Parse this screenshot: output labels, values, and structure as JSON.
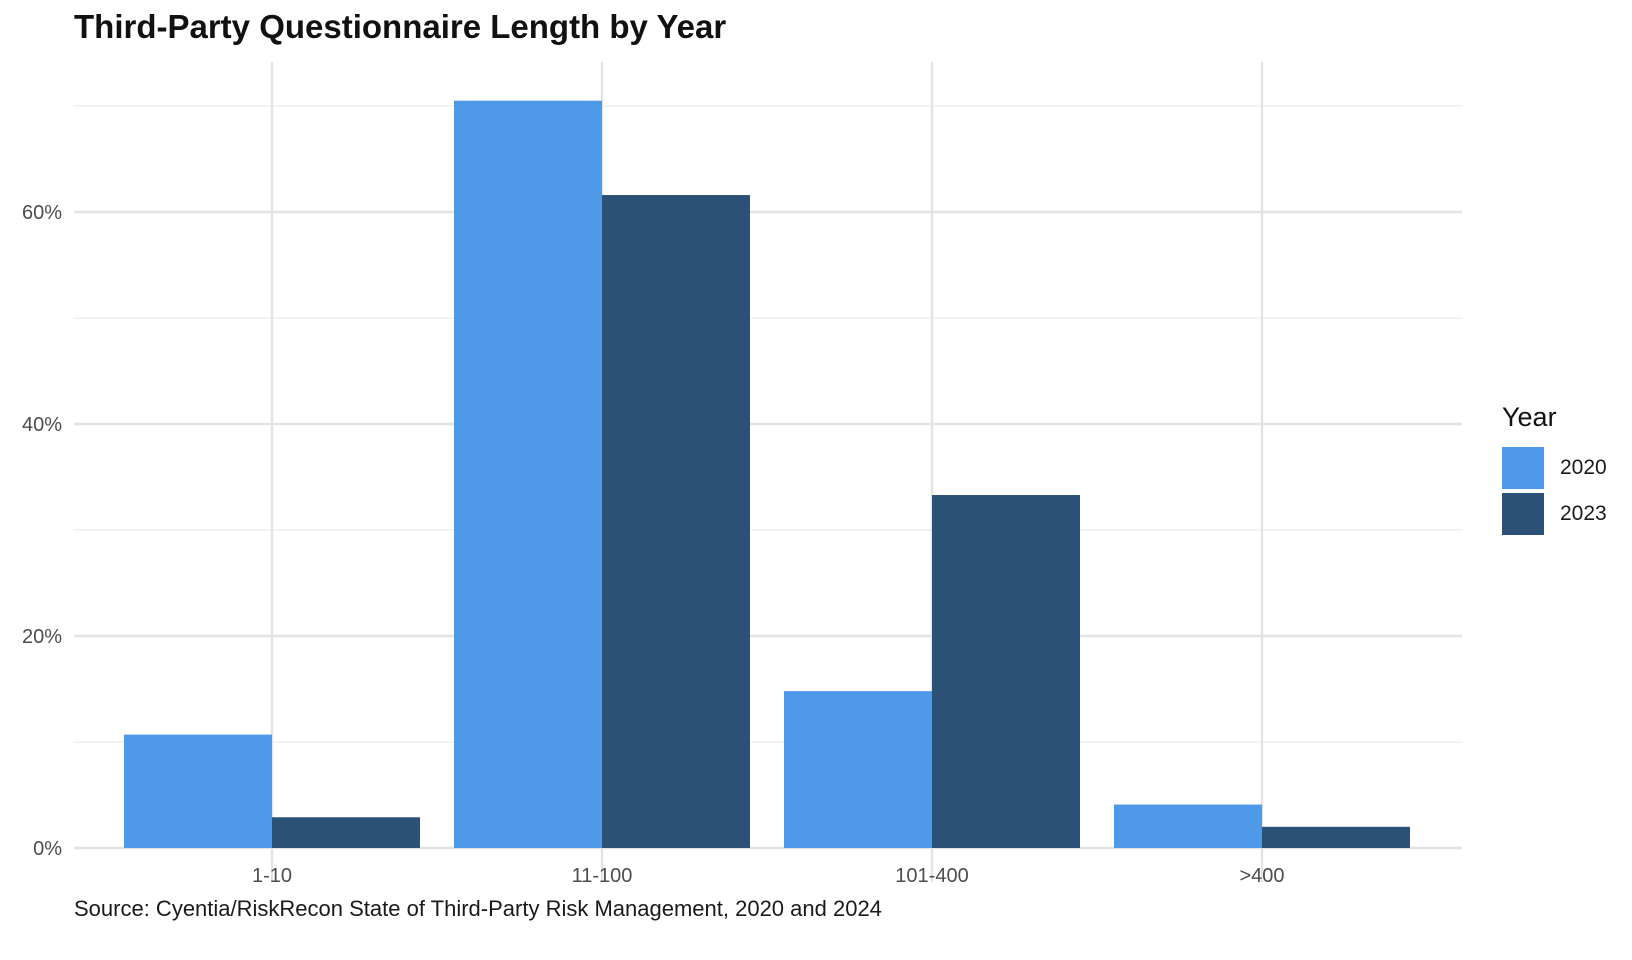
{
  "chart_data": {
    "type": "bar",
    "title": "Third-Party Questionnaire Length by Year",
    "caption": "Source: Cyentia/RiskRecon State of Third-Party Risk Management, 2020 and 2024",
    "xlabel": "",
    "ylabel": "",
    "categories": [
      "1-10",
      "11-100",
      "101-400",
      ">400"
    ],
    "series": [
      {
        "name": "2020",
        "color": "#4e9ae8",
        "values": [
          10.7,
          70.5,
          14.8,
          4.1
        ]
      },
      {
        "name": "2023",
        "color": "#2b5276",
        "values": [
          2.9,
          61.6,
          33.3,
          2.0
        ]
      }
    ],
    "y_ticks": [
      0,
      20,
      40,
      60
    ],
    "y_tick_labels": [
      "0%",
      "20%",
      "40%",
      "60%"
    ],
    "ylim": [
      0,
      74
    ],
    "grid": true,
    "legend": {
      "title": "Year",
      "position": "right"
    }
  }
}
